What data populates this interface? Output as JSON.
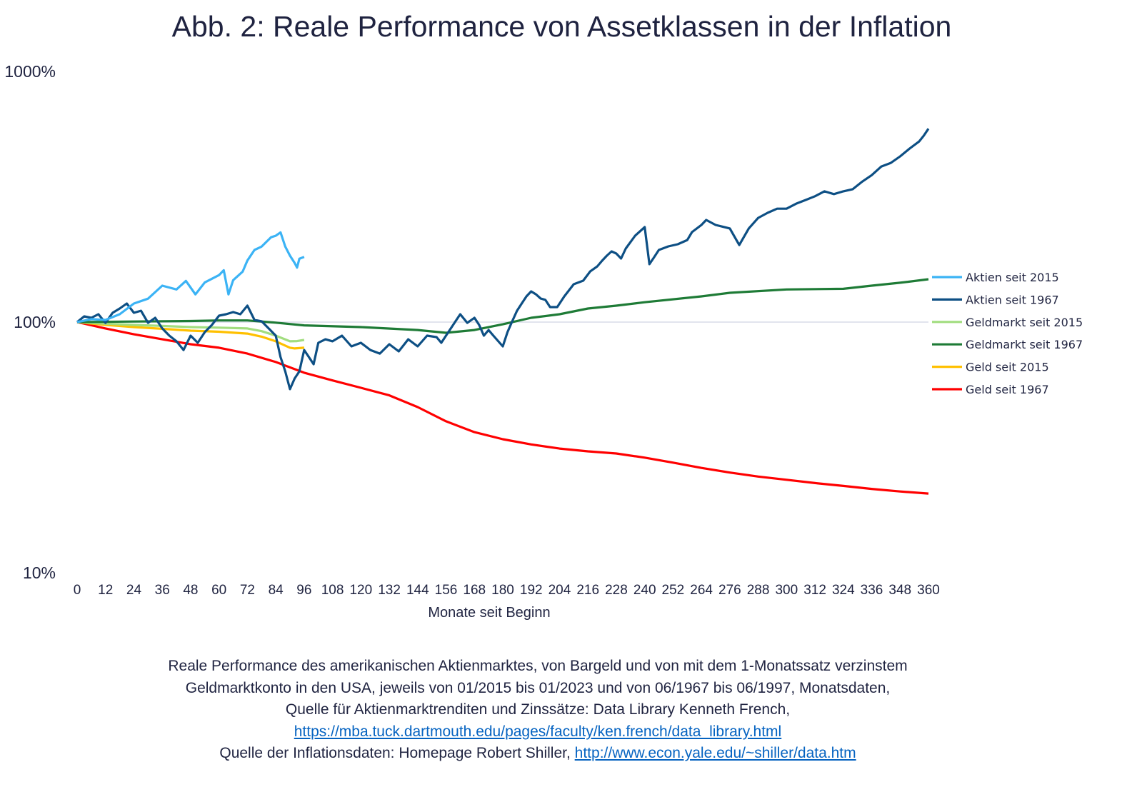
{
  "chart_data": {
    "type": "line",
    "title": "Abb. 2: Reale Performance von Assetklassen in der Inflation",
    "xlabel": "Monate seit Beginn",
    "ylabel": "",
    "yscale": "log",
    "ylim": [
      10,
      1000
    ],
    "yticks": [
      "10%",
      "100%",
      "1000%"
    ],
    "xlim": [
      0,
      360
    ],
    "xticks": [
      0,
      12,
      24,
      36,
      48,
      60,
      72,
      84,
      96,
      108,
      120,
      132,
      144,
      156,
      168,
      180,
      192,
      204,
      216,
      228,
      240,
      252,
      264,
      276,
      288,
      300,
      312,
      324,
      336,
      348,
      360
    ],
    "reference_line": 100,
    "grid": false,
    "legend_position": "right",
    "series": [
      {
        "name": "Aktien seit 2015",
        "color": "#3bb3f5",
        "points": [
          [
            0,
            100
          ],
          [
            6,
            102.7
          ],
          [
            12,
            102
          ],
          [
            18,
            107.5
          ],
          [
            24,
            118.6
          ],
          [
            30,
            124
          ],
          [
            36,
            139.7
          ],
          [
            42,
            135
          ],
          [
            46,
            146
          ],
          [
            50,
            129
          ],
          [
            54,
            144
          ],
          [
            60,
            154
          ],
          [
            62,
            161
          ],
          [
            64,
            129
          ],
          [
            66,
            147
          ],
          [
            70,
            159
          ],
          [
            72,
            176
          ],
          [
            75,
            194
          ],
          [
            78,
            200
          ],
          [
            82,
            218
          ],
          [
            84,
            221
          ],
          [
            86,
            228
          ],
          [
            88,
            200
          ],
          [
            90,
            184
          ],
          [
            92,
            172
          ],
          [
            93,
            165
          ],
          [
            94,
            179
          ],
          [
            96,
            182
          ]
        ]
      },
      {
        "name": "Aktien seit 1967",
        "color": "#0d4f84",
        "points": [
          [
            0,
            100
          ],
          [
            3,
            105.4
          ],
          [
            6,
            104
          ],
          [
            9,
            107.5
          ],
          [
            12,
            99.3
          ],
          [
            15,
            108.9
          ],
          [
            18,
            113.3
          ],
          [
            21,
            118.6
          ],
          [
            24,
            108.9
          ],
          [
            27,
            111
          ],
          [
            30,
            99.3
          ],
          [
            33,
            104
          ],
          [
            36,
            94.3
          ],
          [
            39,
            88.3
          ],
          [
            42,
            83.8
          ],
          [
            45,
            77.4
          ],
          [
            48,
            88.3
          ],
          [
            51,
            82.7
          ],
          [
            54,
            91.2
          ],
          [
            57,
            97.4
          ],
          [
            60,
            106.1
          ],
          [
            63,
            107.5
          ],
          [
            66,
            109.6
          ],
          [
            69,
            107.5
          ],
          [
            72,
            116.3
          ],
          [
            75,
            102
          ],
          [
            78,
            100.7
          ],
          [
            81,
            94.3
          ],
          [
            84,
            88.3
          ],
          [
            86,
            72.5
          ],
          [
            88,
            63.6
          ],
          [
            90,
            54
          ],
          [
            92,
            59.6
          ],
          [
            94,
            63.6
          ],
          [
            96,
            77.4
          ],
          [
            98,
            72.5
          ],
          [
            100,
            67.9
          ],
          [
            102,
            82.7
          ],
          [
            105,
            85.4
          ],
          [
            108,
            83.8
          ],
          [
            112,
            88.3
          ],
          [
            116,
            80
          ],
          [
            120,
            82.7
          ],
          [
            124,
            77.4
          ],
          [
            128,
            74.9
          ],
          [
            132,
            81.6
          ],
          [
            136,
            76.4
          ],
          [
            140,
            85.4
          ],
          [
            144,
            80
          ],
          [
            148,
            88.3
          ],
          [
            152,
            87.1
          ],
          [
            154,
            82.7
          ],
          [
            156,
            88.3
          ],
          [
            158,
            94.3
          ],
          [
            160,
            100.7
          ],
          [
            162,
            107.5
          ],
          [
            165,
            99.3
          ],
          [
            168,
            104
          ],
          [
            170,
            97.4
          ],
          [
            172,
            88.3
          ],
          [
            174,
            93
          ],
          [
            176,
            88.3
          ],
          [
            180,
            80
          ],
          [
            182,
            91.2
          ],
          [
            184,
            100.7
          ],
          [
            186,
            111
          ],
          [
            188,
            118.6
          ],
          [
            190,
            126.6
          ],
          [
            192,
            132.6
          ],
          [
            194,
            129.1
          ],
          [
            196,
            124.2
          ],
          [
            198,
            122.6
          ],
          [
            200,
            114.8
          ],
          [
            203,
            114.8
          ],
          [
            206,
            126.6
          ],
          [
            210,
            141.6
          ],
          [
            214,
            146.3
          ],
          [
            217,
            159.4
          ],
          [
            220,
            166.9
          ],
          [
            222,
            175.8
          ],
          [
            224,
            184
          ],
          [
            226,
            191.5
          ],
          [
            228,
            187.7
          ],
          [
            230,
            179.3
          ],
          [
            232,
            196.6
          ],
          [
            236,
            221.3
          ],
          [
            240,
            239.3
          ],
          [
            242,
            170.2
          ],
          [
            244,
            181.6
          ],
          [
            246,
            194
          ],
          [
            250,
            200.4
          ],
          [
            254,
            204.4
          ],
          [
            258,
            212.5
          ],
          [
            260,
            228.6
          ],
          [
            264,
            244
          ],
          [
            266,
            255.5
          ],
          [
            270,
            244
          ],
          [
            276,
            236.3
          ],
          [
            280,
            203
          ],
          [
            284,
            236.3
          ],
          [
            288,
            260.5
          ],
          [
            292,
            272.8
          ],
          [
            296,
            283.5
          ],
          [
            300,
            283.5
          ],
          [
            304,
            296.6
          ],
          [
            308,
            306.8
          ],
          [
            312,
            317.6
          ],
          [
            316,
            332.5
          ],
          [
            320,
            324
          ],
          [
            324,
            332.5
          ],
          [
            328,
            339
          ],
          [
            332,
            363.5
          ],
          [
            336,
            385.5
          ],
          [
            340,
            417
          ],
          [
            344,
            431
          ],
          [
            348,
            458
          ],
          [
            352,
            492
          ],
          [
            356,
            525
          ],
          [
            358,
            554
          ],
          [
            360,
            591
          ]
        ]
      },
      {
        "name": "Geldmarkt seit 2015",
        "color": "#a2dd7f",
        "points": [
          [
            0,
            100
          ],
          [
            12,
            98.5
          ],
          [
            24,
            97.4
          ],
          [
            36,
            96.5
          ],
          [
            48,
            95.5
          ],
          [
            60,
            95
          ],
          [
            72,
            94.3
          ],
          [
            78,
            92
          ],
          [
            84,
            88.3
          ],
          [
            90,
            83.8
          ],
          [
            93,
            84
          ],
          [
            96,
            84.9
          ]
        ]
      },
      {
        "name": "Geldmarkt seit 1967",
        "color": "#1e7b36",
        "points": [
          [
            0,
            100
          ],
          [
            24,
            100.5
          ],
          [
            48,
            101
          ],
          [
            60,
            101.5
          ],
          [
            72,
            101.5
          ],
          [
            84,
            99.5
          ],
          [
            96,
            97
          ],
          [
            120,
            95.5
          ],
          [
            144,
            93
          ],
          [
            156,
            90.6
          ],
          [
            168,
            93
          ],
          [
            180,
            98
          ],
          [
            192,
            104
          ],
          [
            204,
            107.5
          ],
          [
            216,
            113.3
          ],
          [
            228,
            116.3
          ],
          [
            240,
            120
          ],
          [
            264,
            126.6
          ],
          [
            276,
            130.9
          ],
          [
            300,
            135
          ],
          [
            324,
            135.8
          ],
          [
            336,
            139.7
          ],
          [
            348,
            143.5
          ],
          [
            360,
            148.2
          ]
        ]
      },
      {
        "name": "Geld seit 2015",
        "color": "#ffc000",
        "points": [
          [
            0,
            100
          ],
          [
            12,
            97.5
          ],
          [
            24,
            95.5
          ],
          [
            36,
            94
          ],
          [
            48,
            92.4
          ],
          [
            60,
            91.5
          ],
          [
            72,
            90
          ],
          [
            78,
            87.5
          ],
          [
            84,
            83.8
          ],
          [
            90,
            79
          ],
          [
            92,
            78.5
          ],
          [
            96,
            79
          ]
        ]
      },
      {
        "name": "Geld seit 1967",
        "color": "#ff0000",
        "points": [
          [
            0,
            100
          ],
          [
            12,
            94.3
          ],
          [
            24,
            89.4
          ],
          [
            36,
            85.4
          ],
          [
            48,
            81.6
          ],
          [
            60,
            79
          ],
          [
            72,
            74.9
          ],
          [
            84,
            69.3
          ],
          [
            96,
            62.8
          ],
          [
            108,
            58.5
          ],
          [
            120,
            54.7
          ],
          [
            132,
            51
          ],
          [
            144,
            45.8
          ],
          [
            156,
            40.2
          ],
          [
            168,
            36.4
          ],
          [
            180,
            34.1
          ],
          [
            192,
            32.5
          ],
          [
            204,
            31.3
          ],
          [
            216,
            30.5
          ],
          [
            228,
            29.9
          ],
          [
            240,
            28.8
          ],
          [
            252,
            27.5
          ],
          [
            264,
            26.2
          ],
          [
            276,
            25.1
          ],
          [
            288,
            24.2
          ],
          [
            300,
            23.5
          ],
          [
            312,
            22.8
          ],
          [
            324,
            22.2
          ],
          [
            336,
            21.6
          ],
          [
            348,
            21.1
          ],
          [
            360,
            20.7
          ]
        ]
      }
    ]
  },
  "caption": {
    "line1": "Reale Performance des amerikanischen Aktienmarktes, von Bargeld und von mit dem 1-Monatssatz verzinstem",
    "line2": "Geldmarktkonto in den USA, jeweils von 01/2015 bis 01/2023 und von 06/1967 bis 06/1997, Monatsdaten,",
    "line3": "Quelle für Aktienmarktrenditen und Zinssätze: Data Library Kenneth French,",
    "link1": "https://mba.tuck.dartmouth.edu/pages/faculty/ken.french/data_library.html",
    "line5_prefix": "Quelle der Inflationsdaten: Homepage Robert Shiller,",
    "link2": "http://www.econ.yale.edu/~shiller/data.htm"
  }
}
